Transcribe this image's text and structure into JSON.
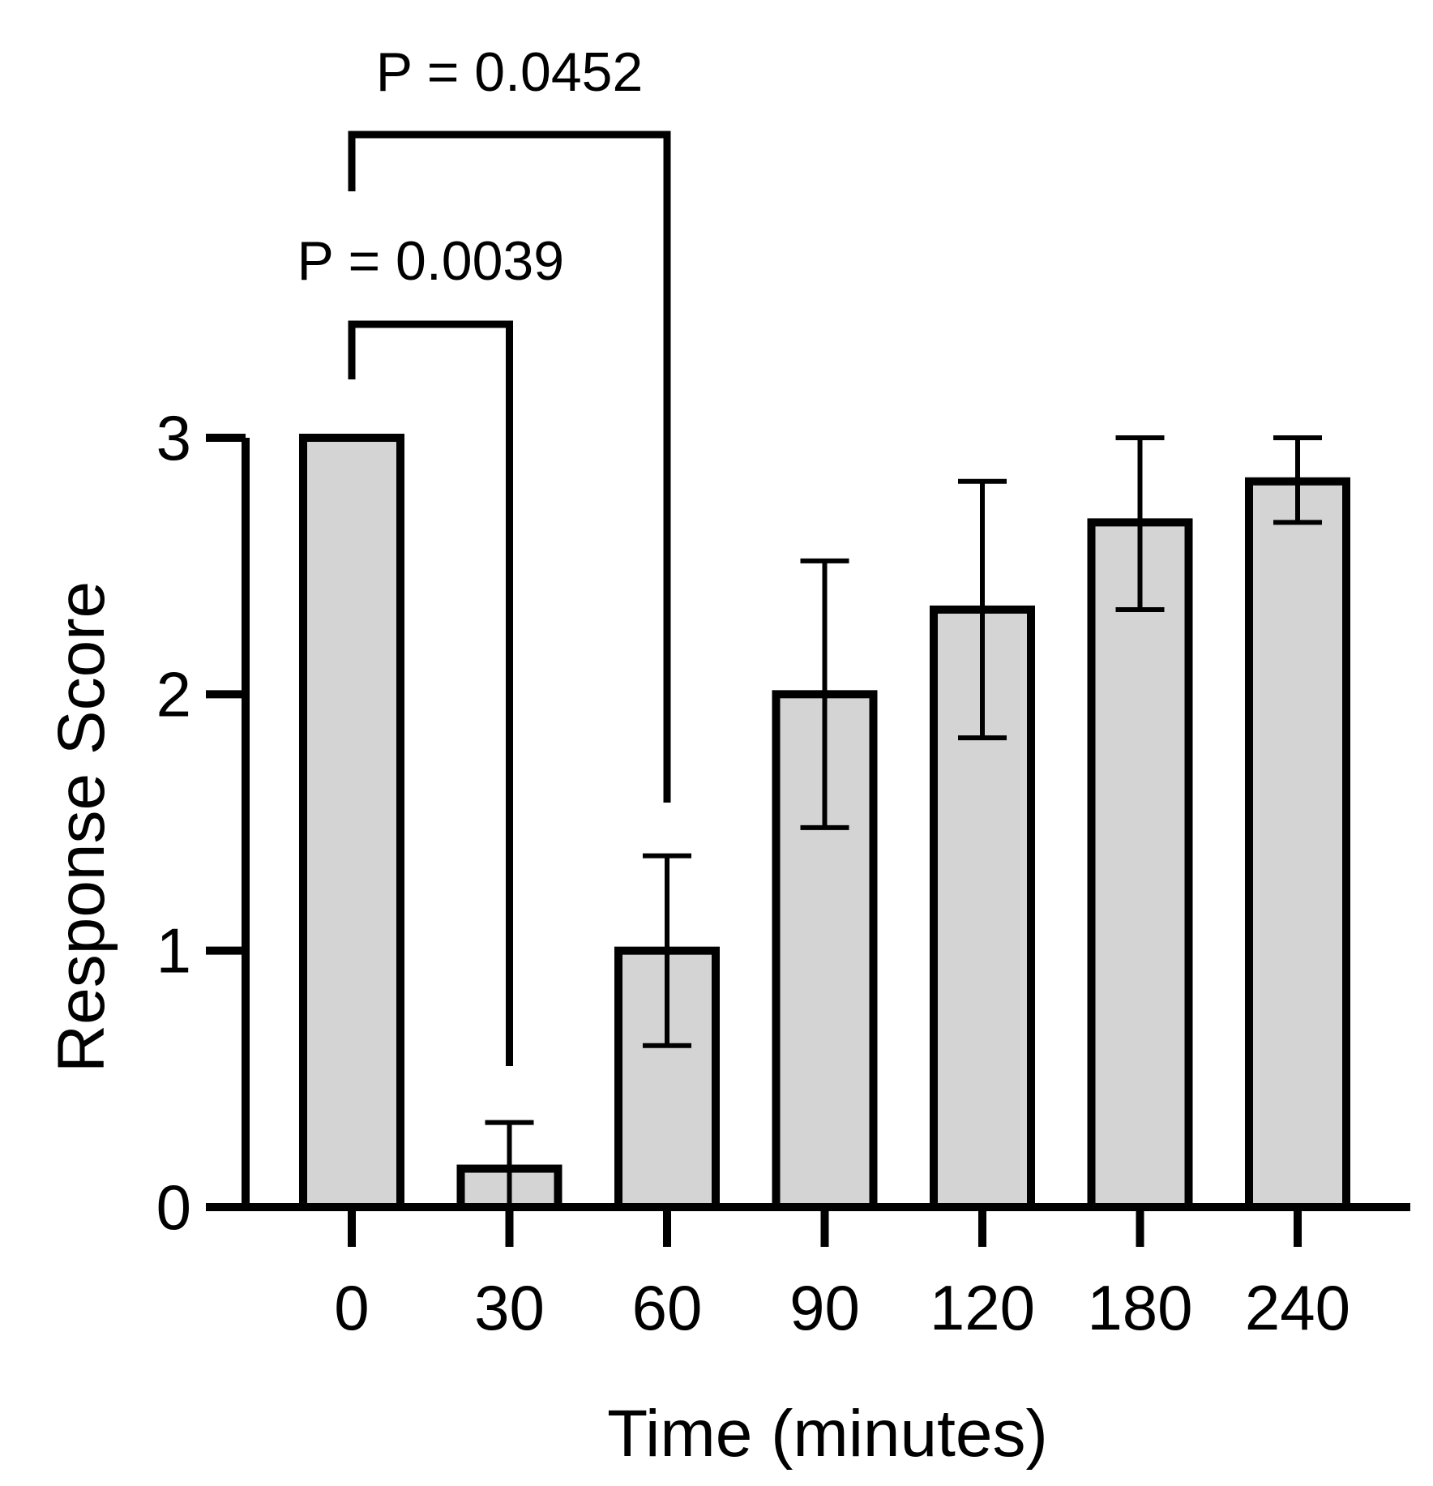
{
  "chart_data": {
    "type": "bar",
    "xlabel": "Time (minutes)",
    "ylabel": "Response Score",
    "categories": [
      "0",
      "30",
      "60",
      "90",
      "120",
      "180",
      "240"
    ],
    "values": [
      3.0,
      0.15,
      1.0,
      2.0,
      2.33,
      2.67,
      2.83
    ],
    "error_upper": [
      3.0,
      0.33,
      1.37,
      2.52,
      2.83,
      3.0,
      3.0
    ],
    "error_lower": [
      3.0,
      0.0,
      0.63,
      1.48,
      1.83,
      2.33,
      2.67
    ],
    "ylim": [
      0,
      3
    ],
    "yticks": [
      "0",
      "1",
      "2",
      "3"
    ],
    "grid": false,
    "legend": "none",
    "bar_fill": "#d4d4d4",
    "bar_stroke": "#000000",
    "comparisons": [
      {
        "from": "0",
        "to": "30",
        "label": "P = 0.0039"
      },
      {
        "from": "0",
        "to": "60",
        "label": "P = 0.0452"
      }
    ]
  }
}
